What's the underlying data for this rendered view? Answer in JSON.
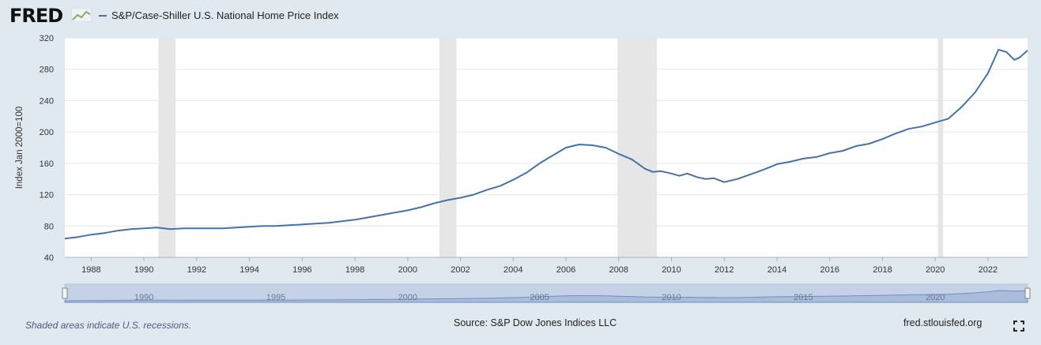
{
  "header": {
    "logo_text": "FRED",
    "legend_label": "S&P/Case-Shiller U.S. National Home Price Index"
  },
  "colors": {
    "series": "#4572a7",
    "recession": "#e6e6e6",
    "plot_bg": "#ffffff",
    "navigator_fill": "#a9bcd9",
    "navigator_line": "#6f8fc2"
  },
  "chart_data": {
    "type": "line",
    "title": "S&P/Case-Shiller U.S. National Home Price Index",
    "ylabel": "Index Jan 2000=100",
    "xlabel": "",
    "xlim": [
      1987.0,
      2023.5
    ],
    "ylim": [
      40,
      320
    ],
    "yticks": [
      40,
      80,
      120,
      160,
      200,
      240,
      280,
      320
    ],
    "xticks": [
      1988,
      1990,
      1992,
      1994,
      1996,
      1998,
      2000,
      2002,
      2004,
      2006,
      2008,
      2010,
      2012,
      2014,
      2016,
      2018,
      2020,
      2022
    ],
    "navigator_ticks": [
      1990,
      1995,
      2000,
      2005,
      2010,
      2015,
      2020
    ],
    "recessions": [
      [
        1990.55,
        1991.2
      ],
      [
        2001.2,
        2001.85
      ],
      [
        2007.95,
        2009.45
      ],
      [
        2020.1,
        2020.3
      ]
    ],
    "series": [
      {
        "name": "S&P/Case-Shiller U.S. National Home Price Index",
        "x": [
          1987.0,
          1987.5,
          1988.0,
          1988.5,
          1989.0,
          1989.5,
          1990.0,
          1990.5,
          1991.0,
          1991.5,
          1992.0,
          1992.5,
          1993.0,
          1993.5,
          1994.0,
          1994.5,
          1995.0,
          1995.5,
          1996.0,
          1996.5,
          1997.0,
          1997.5,
          1998.0,
          1998.5,
          1999.0,
          1999.5,
          2000.0,
          2000.5,
          2001.0,
          2001.5,
          2002.0,
          2002.5,
          2003.0,
          2003.5,
          2004.0,
          2004.5,
          2005.0,
          2005.5,
          2006.0,
          2006.5,
          2007.0,
          2007.5,
          2008.0,
          2008.5,
          2009.0,
          2009.3,
          2009.6,
          2010.0,
          2010.3,
          2010.6,
          2011.0,
          2011.3,
          2011.6,
          2012.0,
          2012.5,
          2013.0,
          2013.5,
          2014.0,
          2014.5,
          2015.0,
          2015.5,
          2016.0,
          2016.5,
          2017.0,
          2017.5,
          2018.0,
          2018.5,
          2019.0,
          2019.5,
          2020.0,
          2020.5,
          2021.0,
          2021.5,
          2022.0,
          2022.4,
          2022.7,
          2023.0,
          2023.2,
          2023.5
        ],
        "values": [
          64,
          66,
          69,
          71,
          74,
          76,
          77,
          78,
          76,
          77,
          77,
          77,
          77,
          78,
          79,
          80,
          80,
          81,
          82,
          83,
          84,
          86,
          88,
          91,
          94,
          97,
          100,
          104,
          109,
          113,
          116,
          120,
          126,
          131,
          139,
          148,
          160,
          170,
          180,
          184,
          183,
          180,
          172,
          165,
          153,
          149,
          150,
          147,
          144,
          147,
          142,
          140,
          141,
          136,
          140,
          146,
          152,
          159,
          162,
          166,
          168,
          173,
          176,
          182,
          185,
          191,
          198,
          204,
          207,
          212,
          217,
          232,
          250,
          275,
          305,
          302,
          292,
          295,
          304
        ]
      }
    ]
  },
  "footer": {
    "recession_note": "Shaded areas indicate U.S. recessions.",
    "source": "Source: S&P Dow Jones Indices LLC",
    "site": "fred.stlouisfed.org"
  }
}
